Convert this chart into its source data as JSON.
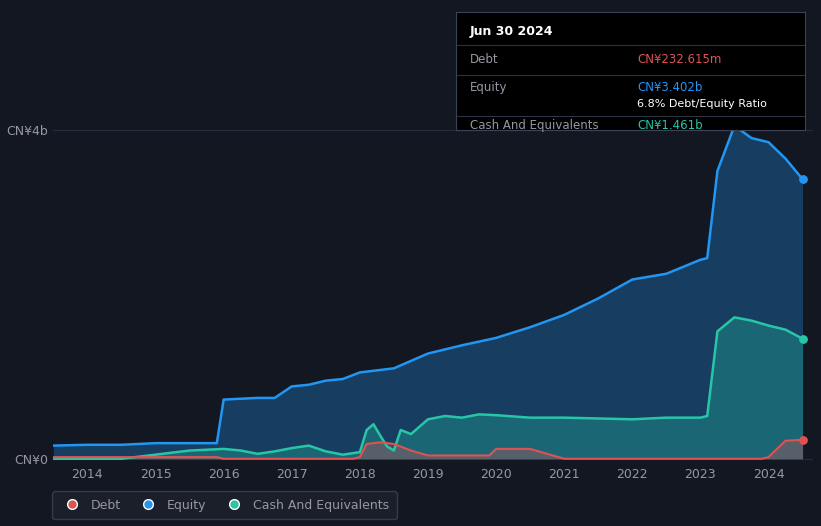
{
  "bg_color": "#131722",
  "plot_bg_color": "#131722",
  "grid_color": "#252d3d",
  "ylabel_text": "CN¥4b",
  "y0_text": "CN¥0",
  "x_ticks": [
    2014,
    2015,
    2016,
    2017,
    2018,
    2019,
    2020,
    2021,
    2022,
    2023,
    2024
  ],
  "debt_color": "#e05252",
  "equity_color": "#2196f3",
  "cash_color": "#26c6a6",
  "legend_labels": [
    "Debt",
    "Equity",
    "Cash And Equivalents"
  ],
  "tooltip_date": "Jun 30 2024",
  "tooltip_debt_label": "Debt",
  "tooltip_debt_value": "CN¥232.615m",
  "tooltip_equity_label": "Equity",
  "tooltip_equity_value": "CN¥3.402b",
  "tooltip_ratio": "6.8% Debt/Equity Ratio",
  "tooltip_cash_label": "Cash And Equivalents",
  "tooltip_cash_value": "CN¥1.461b",
  "equity_data": {
    "years": [
      2013.5,
      2014.0,
      2014.5,
      2015.0,
      2015.5,
      2015.9,
      2016.0,
      2016.25,
      2016.5,
      2016.75,
      2017.0,
      2017.25,
      2017.5,
      2017.75,
      2018.0,
      2018.5,
      2019.0,
      2019.5,
      2020.0,
      2020.5,
      2021.0,
      2021.5,
      2022.0,
      2022.5,
      2023.0,
      2023.1,
      2023.25,
      2023.5,
      2023.75,
      2024.0,
      2024.25,
      2024.5
    ],
    "values": [
      0.16,
      0.17,
      0.17,
      0.19,
      0.19,
      0.19,
      0.72,
      0.73,
      0.74,
      0.74,
      0.88,
      0.9,
      0.95,
      0.97,
      1.05,
      1.1,
      1.28,
      1.38,
      1.47,
      1.6,
      1.75,
      1.95,
      2.18,
      2.25,
      2.42,
      2.44,
      3.5,
      4.05,
      3.9,
      3.85,
      3.65,
      3.4
    ]
  },
  "cash_data": {
    "years": [
      2013.5,
      2014.0,
      2014.5,
      2015.0,
      2015.5,
      2016.0,
      2016.25,
      2016.5,
      2016.75,
      2017.0,
      2017.25,
      2017.5,
      2017.75,
      2018.0,
      2018.1,
      2018.2,
      2018.3,
      2018.4,
      2018.5,
      2018.6,
      2018.75,
      2019.0,
      2019.25,
      2019.5,
      2019.75,
      2020.0,
      2020.5,
      2021.0,
      2021.5,
      2022.0,
      2022.5,
      2023.0,
      2023.1,
      2023.25,
      2023.5,
      2023.75,
      2024.0,
      2024.25,
      2024.5
    ],
    "values": [
      0.0,
      0.0,
      0.0,
      0.05,
      0.1,
      0.12,
      0.1,
      0.06,
      0.09,
      0.13,
      0.16,
      0.09,
      0.05,
      0.08,
      0.35,
      0.42,
      0.28,
      0.15,
      0.1,
      0.35,
      0.3,
      0.48,
      0.52,
      0.5,
      0.54,
      0.53,
      0.5,
      0.5,
      0.49,
      0.48,
      0.5,
      0.5,
      0.52,
      1.55,
      1.72,
      1.68,
      1.62,
      1.57,
      1.46
    ]
  },
  "debt_data": {
    "years": [
      2013.5,
      2014.0,
      2014.5,
      2015.0,
      2015.5,
      2015.9,
      2016.0,
      2016.5,
      2017.0,
      2017.5,
      2017.9,
      2018.0,
      2018.1,
      2018.3,
      2018.5,
      2018.75,
      2019.0,
      2019.5,
      2019.9,
      2020.0,
      2020.5,
      2021.0,
      2021.5,
      2022.0,
      2022.5,
      2023.0,
      2023.5,
      2023.9,
      2024.0,
      2024.25,
      2024.5
    ],
    "values": [
      0.02,
      0.02,
      0.02,
      0.02,
      0.02,
      0.02,
      0.0,
      0.0,
      0.0,
      0.0,
      0.0,
      0.02,
      0.18,
      0.2,
      0.18,
      0.1,
      0.04,
      0.04,
      0.04,
      0.12,
      0.12,
      0.0,
      0.0,
      0.0,
      0.0,
      0.0,
      0.0,
      0.0,
      0.02,
      0.22,
      0.23
    ]
  },
  "ylim": [
    -0.05,
    4.3
  ],
  "xlim": [
    2013.5,
    2024.65
  ]
}
